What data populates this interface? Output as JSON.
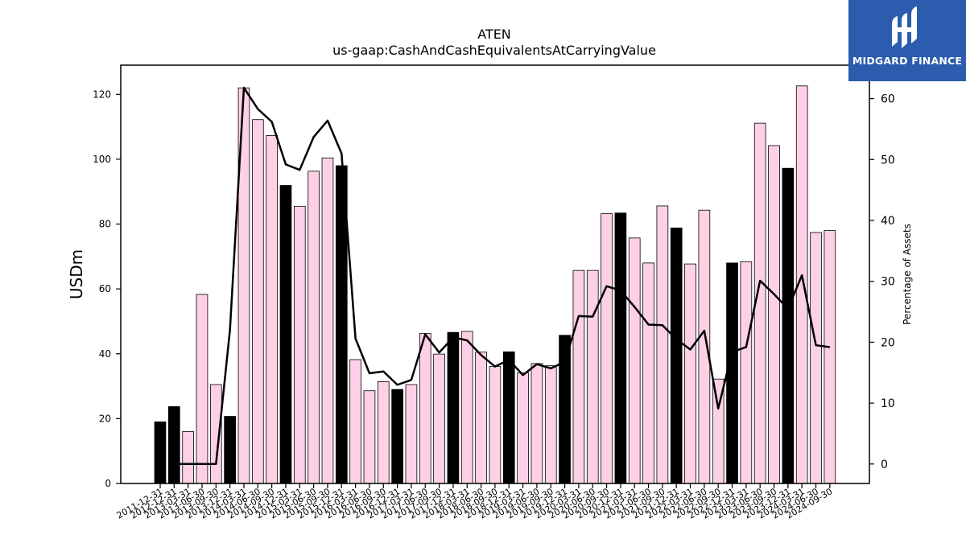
{
  "chart_data": {
    "type": "bar",
    "title": "ATEN",
    "subtitle": "us-gaap:CashAndCashEquivalentsAtCarryingValue",
    "ylabel": "USDm",
    "y2label": "Percentage of Assets",
    "ylim": [
      0,
      129
    ],
    "y2lim": [
      -3.2,
      65.5
    ],
    "yticks": [
      0,
      20,
      40,
      60,
      80,
      100,
      120
    ],
    "y2ticks": [
      0,
      10,
      20,
      30,
      40,
      50,
      60
    ],
    "grid": false,
    "colors": {
      "bar_default": "#fdd0e6",
      "bar_highlight": "#000000",
      "bar_edge": "#000000",
      "line": "#000000"
    },
    "categories": [
      "2011-12-31",
      "2012-12-31",
      "2013-03-31",
      "2013-06-30",
      "2013-09-30",
      "2013-12-31",
      "2014-03-31",
      "2014-06-30",
      "2014-09-30",
      "2014-12-31",
      "2015-03-31",
      "2015-06-30",
      "2015-09-30",
      "2015-12-31",
      "2016-03-31",
      "2016-06-30",
      "2016-09-30",
      "2016-12-31",
      "2017-03-31",
      "2017-06-30",
      "2017-09-30",
      "2017-12-31",
      "2018-03-31",
      "2018-06-30",
      "2018-09-30",
      "2018-12-31",
      "2019-03-31",
      "2019-06-30",
      "2019-09-30",
      "2019-12-31",
      "2020-03-31",
      "2020-06-30",
      "2020-09-30",
      "2020-12-31",
      "2021-03-31",
      "2021-06-30",
      "2021-09-30",
      "2021-12-31",
      "2022-03-31",
      "2022-06-30",
      "2022-09-30",
      "2022-12-31",
      "2023-03-31",
      "2023-06-30",
      "2023-09-30",
      "2023-12-31",
      "2024-03-31",
      "2024-06-30",
      "2024-09-30"
    ],
    "series": [
      {
        "kind": "bar",
        "values": [
          19.0,
          23.7,
          16.0,
          58.3,
          30.5,
          20.7,
          122.0,
          112.2,
          107.3,
          91.9,
          85.5,
          96.3,
          100.4,
          98.0,
          38.2,
          28.6,
          31.4,
          29.0,
          30.5,
          46.3,
          39.9,
          46.6,
          46.9,
          40.5,
          36.1,
          40.6,
          34.1,
          37.0,
          36.3,
          45.7,
          65.7,
          65.7,
          83.2,
          83.4,
          75.7,
          68.0,
          85.6,
          78.8,
          67.7,
          84.3,
          32.2,
          68.0,
          68.4,
          111.1,
          104.2,
          97.2,
          122.6,
          77.4,
          78.0
        ],
        "highlight": [
          true,
          true,
          false,
          false,
          false,
          true,
          false,
          false,
          false,
          true,
          false,
          false,
          false,
          true,
          false,
          false,
          false,
          true,
          false,
          false,
          false,
          true,
          false,
          false,
          false,
          true,
          false,
          false,
          false,
          true,
          false,
          false,
          false,
          true,
          false,
          false,
          false,
          true,
          false,
          false,
          false,
          true,
          false,
          false,
          false,
          true,
          false,
          false,
          false
        ]
      },
      {
        "kind": "line",
        "axis": "right",
        "values": [
          null,
          0.0,
          0.0,
          0.0,
          0.0,
          22.0,
          61.8,
          58.3,
          56.2,
          49.2,
          48.3,
          53.7,
          56.4,
          51.0,
          20.6,
          14.9,
          15.2,
          13.0,
          13.8,
          21.3,
          18.3,
          20.8,
          20.3,
          17.9,
          16.0,
          17.1,
          14.6,
          16.4,
          15.7,
          16.8,
          24.3,
          24.2,
          29.2,
          28.5,
          25.8,
          22.9,
          22.8,
          20.5,
          18.8,
          21.9,
          9.1,
          18.4,
          19.2,
          30.1,
          27.9,
          25.5,
          31.0,
          19.5,
          19.2
        ]
      }
    ]
  },
  "logo": {
    "text": "MIDGARD FINANCE"
  }
}
